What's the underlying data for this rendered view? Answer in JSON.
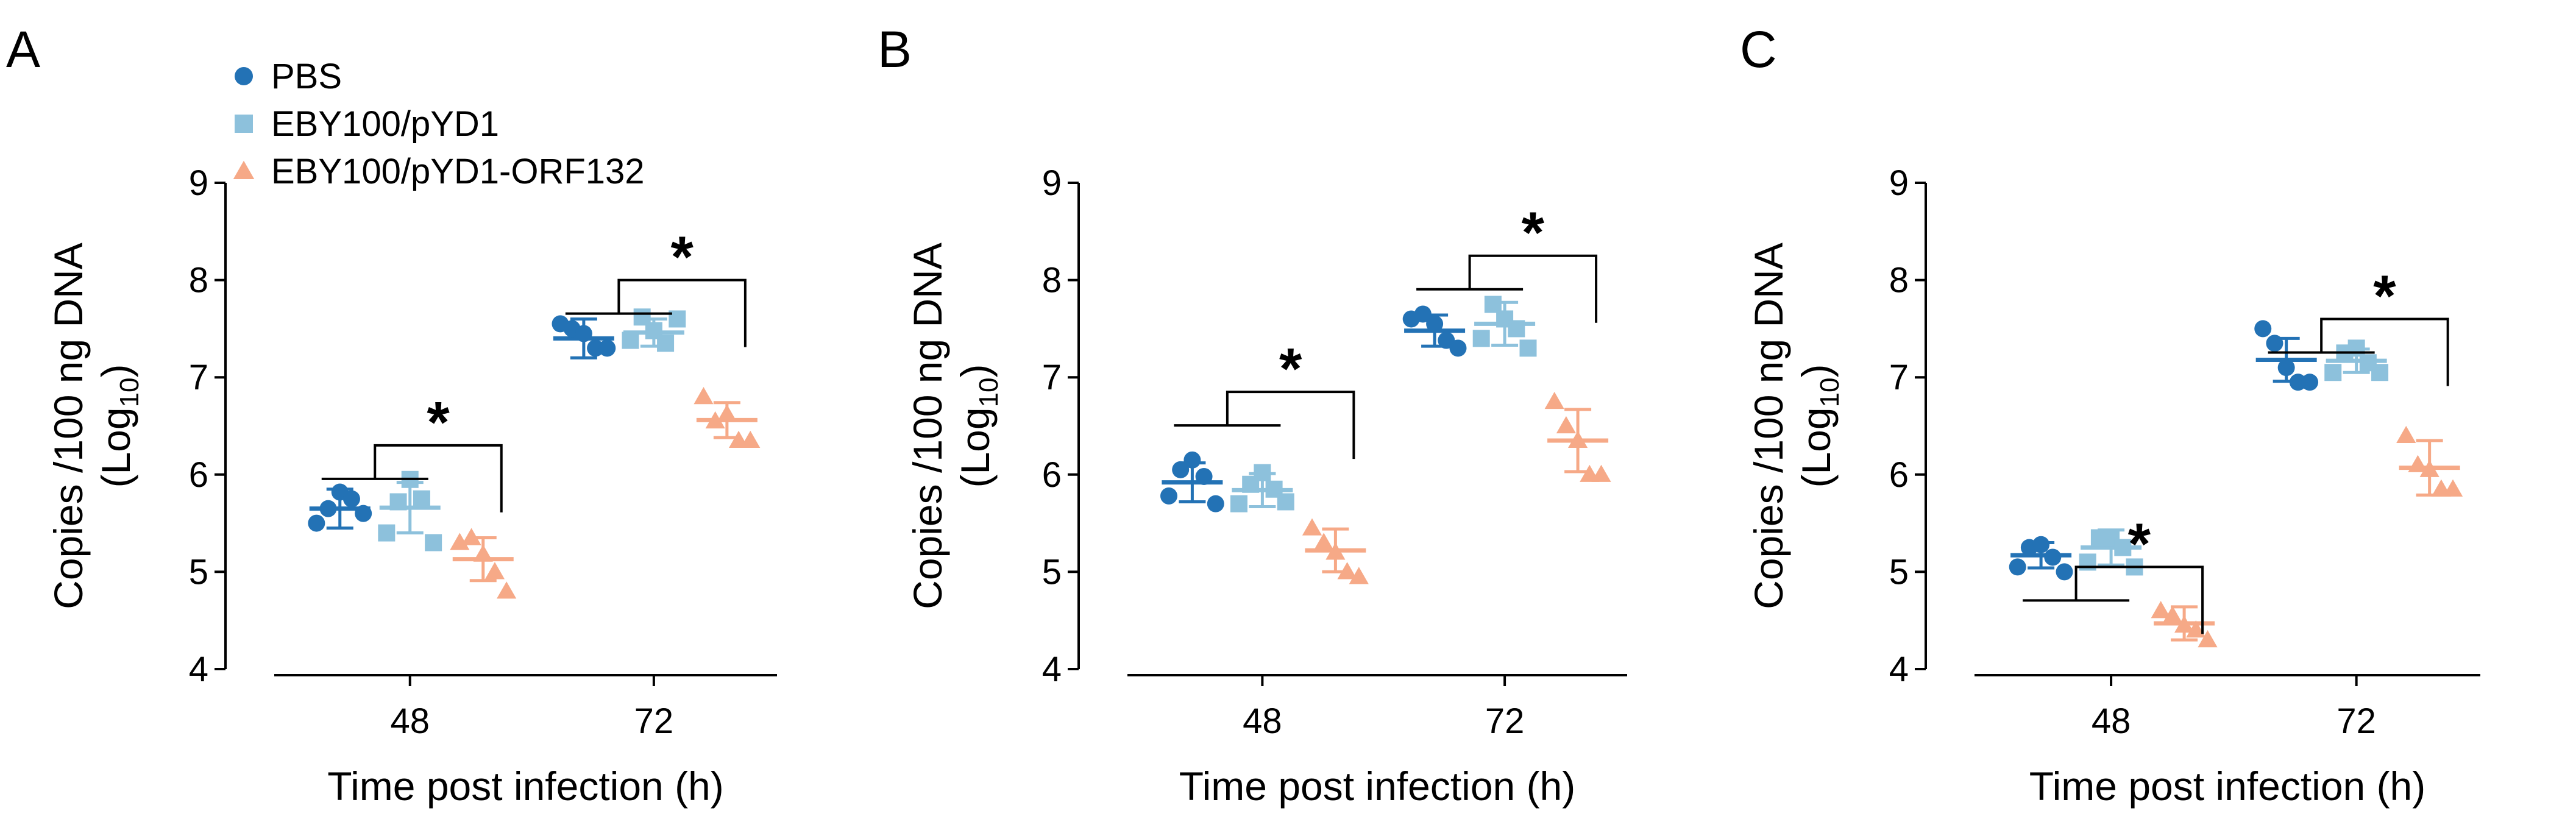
{
  "colors": {
    "PBS": "#2372b5",
    "EBY100/pYD1": "#8dc1dc",
    "EBY100/pYD1-ORF132": "#f6a987",
    "axis": "#000000"
  },
  "legend": [
    {
      "name": "PBS",
      "marker": "circle"
    },
    {
      "name": "EBY100/pYD1",
      "marker": "square"
    },
    {
      "name": "EBY100/pYD1-ORF132",
      "marker": "triangle"
    }
  ],
  "chart_data": [
    {
      "type": "scatter",
      "panel": "A",
      "xlabel": "Time post infection (h)",
      "ylabel_main": "Copies /100 ng DNA",
      "ylabel_log": "(Log",
      "ylabel_sub": "10",
      "ylabel_close": ")",
      "categories": [
        "48",
        "72"
      ],
      "ylim": [
        4,
        9
      ],
      "yticks": [
        "4",
        "5",
        "6",
        "7",
        "8",
        "9"
      ],
      "series": [
        {
          "name": "PBS",
          "mean": [
            5.65,
            7.4
          ],
          "sd": [
            0.2,
            0.2
          ],
          "points": [
            [
              5.5,
              5.65,
              5.82,
              5.75,
              5.6
            ],
            [
              7.55,
              7.5,
              7.45,
              7.3,
              7.3
            ]
          ]
        },
        {
          "name": "EBY100/pYD1",
          "mean": [
            5.66,
            7.46
          ],
          "sd": [
            0.26,
            0.14
          ],
          "points": [
            [
              5.4,
              5.72,
              5.95,
              5.75,
              5.3
            ],
            [
              7.38,
              7.62,
              7.48,
              7.35,
              7.6
            ]
          ]
        },
        {
          "name": "EBY100/pYD1-ORF132",
          "mean": [
            5.13,
            6.56
          ],
          "sd": [
            0.22,
            0.18
          ],
          "points": [
            [
              5.3,
              5.35,
              5.18,
              5.0,
              4.8
            ],
            [
              6.8,
              6.55,
              6.62,
              6.35,
              6.35
            ]
          ]
        }
      ],
      "significance": [
        {
          "category": "48",
          "label": "*",
          "bracket_y": 6.3
        },
        {
          "category": "72",
          "label": "*",
          "bracket_y": 8.0
        }
      ]
    },
    {
      "type": "scatter",
      "panel": "B",
      "xlabel": "Time post infection (h)",
      "ylabel_main": "Copies /100 ng DNA",
      "ylabel_log": "(Log",
      "ylabel_sub": "10",
      "ylabel_close": ")",
      "categories": [
        "48",
        "72"
      ],
      "ylim": [
        4,
        9
      ],
      "yticks": [
        "4",
        "5",
        "6",
        "7",
        "8",
        "9"
      ],
      "series": [
        {
          "name": "PBS",
          "mean": [
            5.92,
            7.48
          ],
          "sd": [
            0.2,
            0.16
          ],
          "points": [
            [
              5.78,
              6.05,
              6.15,
              5.98,
              5.7
            ],
            [
              7.6,
              7.65,
              7.55,
              7.38,
              7.3
            ]
          ]
        },
        {
          "name": "EBY100/pYD1",
          "mean": [
            5.84,
            7.55
          ],
          "sd": [
            0.17,
            0.22
          ],
          "points": [
            [
              5.7,
              5.9,
              6.02,
              5.85,
              5.72
            ],
            [
              7.4,
              7.75,
              7.6,
              7.5,
              7.3
            ]
          ]
        },
        {
          "name": "EBY100/pYD1-ORF132",
          "mean": [
            5.22,
            6.35
          ],
          "sd": [
            0.22,
            0.32
          ],
          "points": [
            [
              5.45,
              5.3,
              5.2,
              5.0,
              4.95
            ],
            [
              6.75,
              6.5,
              6.35,
              6.0,
              6.0
            ]
          ]
        }
      ],
      "significance": [
        {
          "category": "48",
          "label": "*",
          "bracket_y": 6.85
        },
        {
          "category": "72",
          "label": "*",
          "bracket_y": 8.25
        }
      ]
    },
    {
      "type": "scatter",
      "panel": "C",
      "xlabel": "Time post infection (h)",
      "ylabel_main": "Copies /100 ng DNA",
      "ylabel_log": "(Log",
      "ylabel_sub": "10",
      "ylabel_close": ")",
      "categories": [
        "48",
        "72"
      ],
      "ylim": [
        4,
        9
      ],
      "yticks": [
        "4",
        "5",
        "6",
        "7",
        "8",
        "9"
      ],
      "series": [
        {
          "name": "PBS",
          "mean": [
            5.17,
            7.18
          ],
          "sd": [
            0.13,
            0.22
          ],
          "points": [
            [
              5.05,
              5.25,
              5.28,
              5.15,
              5.0
            ],
            [
              7.5,
              7.35,
              7.1,
              6.95,
              6.95
            ]
          ]
        },
        {
          "name": "EBY100/pYD1",
          "mean": [
            5.25,
            7.17
          ],
          "sd": [
            0.18,
            0.12
          ],
          "points": [
            [
              5.1,
              5.35,
              5.35,
              5.25,
              5.05
            ],
            [
              7.05,
              7.25,
              7.3,
              7.15,
              7.05
            ]
          ]
        },
        {
          "name": "EBY100/pYD1-ORF132",
          "mean": [
            4.47,
            6.07
          ],
          "sd": [
            0.17,
            0.28
          ],
          "points": [
            [
              4.6,
              4.55,
              4.45,
              4.4,
              4.3
            ],
            [
              6.4,
              6.1,
              6.05,
              5.85,
              5.85
            ]
          ]
        }
      ],
      "significance": [
        {
          "category": "48",
          "label": "*",
          "bracket_y": 5.05
        },
        {
          "category": "72",
          "label": "*",
          "bracket_y": 7.6
        }
      ]
    }
  ]
}
